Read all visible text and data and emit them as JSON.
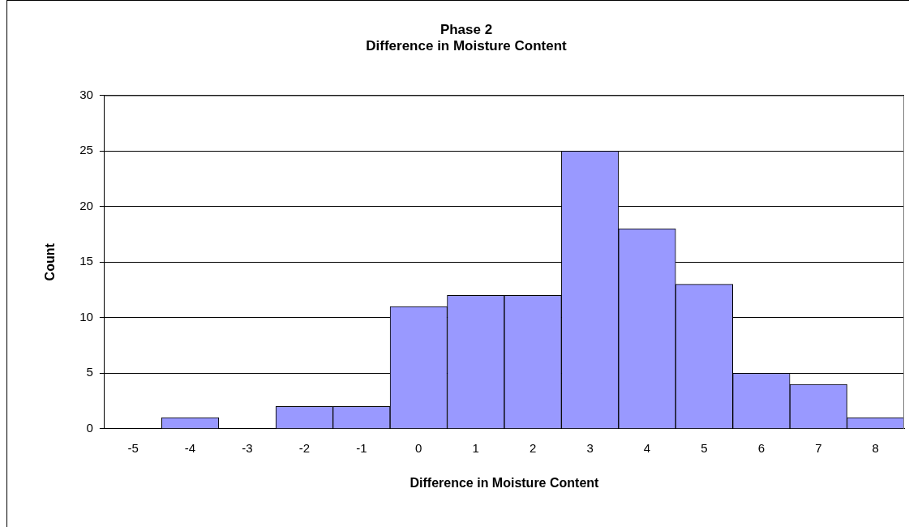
{
  "chart_data": {
    "type": "bar",
    "title": "Phase 2\nDifference in Moisture Content",
    "xlabel": "Difference in Moisture Content",
    "ylabel": "Count",
    "categories": [
      "-5",
      "-4",
      "-3",
      "-2",
      "-1",
      "0",
      "1",
      "2",
      "3",
      "4",
      "5",
      "6",
      "7",
      "8"
    ],
    "values": [
      0,
      1,
      0,
      2,
      2,
      11,
      12,
      12,
      25,
      18,
      13,
      5,
      4,
      1
    ],
    "color": "#9999ff",
    "ylim": [
      0,
      30
    ],
    "yticks": [
      0,
      5,
      10,
      15,
      20,
      25,
      30
    ],
    "grid": "y",
    "legend": false
  }
}
